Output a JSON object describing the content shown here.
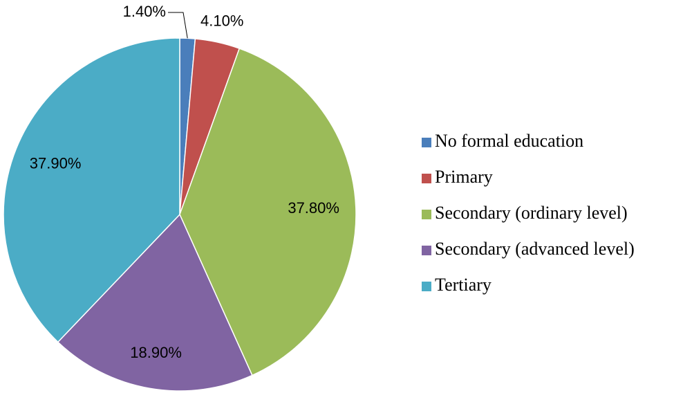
{
  "chart_data": {
    "type": "pie",
    "categories": [
      "No formal education",
      "Primary",
      "Secondary (ordinary level)",
      "Secondary (advanced level)",
      "Tertiary"
    ],
    "values": [
      1.4,
      4.1,
      37.8,
      18.9,
      37.9
    ],
    "value_labels": [
      "1.40%",
      "4.10%",
      "37.80%",
      "18.90%",
      "37.90%"
    ],
    "colors": [
      "#4a7ebb",
      "#c0504d",
      "#9bbb59",
      "#8064a2",
      "#4bacc6"
    ],
    "legend": "right"
  }
}
